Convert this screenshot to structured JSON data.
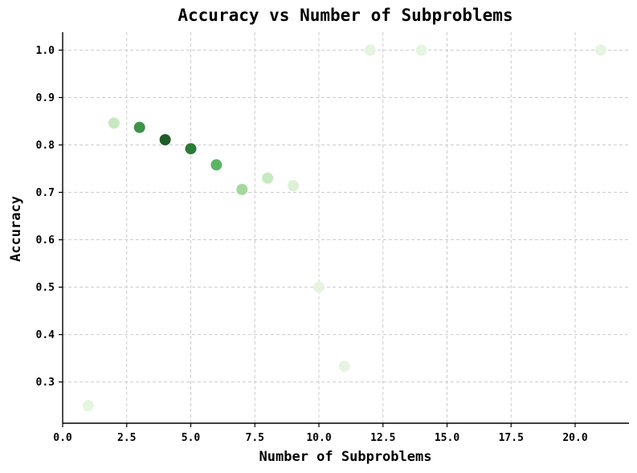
{
  "chart_data": {
    "type": "scatter",
    "title": "Accuracy vs Number of Subproblems",
    "xlabel": "Number of Subproblems",
    "ylabel": "Accuracy",
    "xlim": [
      0,
      22.1
    ],
    "ylim": [
      0.213,
      1.038
    ],
    "xticks": [
      0.0,
      2.5,
      5.0,
      7.5,
      10.0,
      12.5,
      15.0,
      17.5,
      20.0
    ],
    "xtick_labels": [
      "0.0",
      "2.5",
      "5.0",
      "7.5",
      "10.0",
      "12.5",
      "15.0",
      "17.5",
      "20.0"
    ],
    "yticks": [
      0.3,
      0.4,
      0.5,
      0.6,
      0.7,
      0.8,
      0.9,
      1.0
    ],
    "ytick_labels": [
      "0.3",
      "0.4",
      "0.5",
      "0.6",
      "0.7",
      "0.8",
      "0.9",
      "1.0"
    ],
    "grid": true,
    "points": [
      {
        "x": 1,
        "y": 0.25,
        "color": "#e5f5e0"
      },
      {
        "x": 2,
        "y": 0.846,
        "color": "#c7e9c0"
      },
      {
        "x": 3,
        "y": 0.837,
        "color": "#3b9448"
      },
      {
        "x": 4,
        "y": 0.811,
        "color": "#1f5c27"
      },
      {
        "x": 5,
        "y": 0.792,
        "color": "#2b7a37"
      },
      {
        "x": 6,
        "y": 0.758,
        "color": "#5cb464"
      },
      {
        "x": 7,
        "y": 0.706,
        "color": "#a3d89c"
      },
      {
        "x": 8,
        "y": 0.73,
        "color": "#c7e9c0"
      },
      {
        "x": 9,
        "y": 0.714,
        "color": "#ddf1d8"
      },
      {
        "x": 10,
        "y": 0.5,
        "color": "#e5f5e0"
      },
      {
        "x": 11,
        "y": 0.333,
        "color": "#e5f5e0"
      },
      {
        "x": 12,
        "y": 1.0,
        "color": "#e5f5e0"
      },
      {
        "x": 14,
        "y": 1.0,
        "color": "#e5f5e0"
      },
      {
        "x": 21,
        "y": 1.0,
        "color": "#e5f5e0"
      }
    ]
  }
}
